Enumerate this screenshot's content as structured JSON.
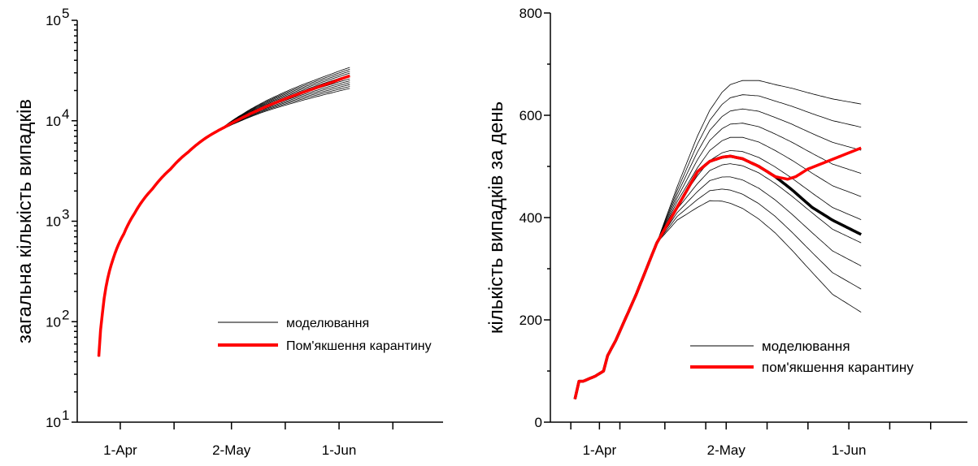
{
  "chart_data": [
    {
      "type": "line",
      "ylabel": "загальна кількість випадків",
      "y_scale": "log",
      "ylim": [
        10,
        100000
      ],
      "y_ticks": [
        {
          "value": 10,
          "label": "10",
          "exp": "1"
        },
        {
          "value": 100,
          "label": "10",
          "exp": "2"
        },
        {
          "value": 1000,
          "label": "10",
          "exp": "3"
        },
        {
          "value": 10000,
          "label": "10",
          "exp": "4"
        },
        {
          "value": 100000,
          "label": "10",
          "exp": "5"
        }
      ],
      "xlim": [
        "2020-03-20",
        "2020-06-30"
      ],
      "x_major_ticks": [
        {
          "date": "2020-04-01",
          "label": "1-Apr"
        },
        {
          "date": "2020-05-02",
          "label": "2-May"
        },
        {
          "date": "2020-06-01",
          "label": "1-Jun"
        }
      ],
      "x_minor_ticks": [
        "2020-04-16",
        "2020-05-17",
        "2020-06-16"
      ],
      "legend": {
        "position": "lower-right",
        "entries": [
          {
            "label": "моделювання",
            "color": "#000000",
            "style": "thin"
          },
          {
            "label": "Пом'якшення карантину",
            "color": "#ff0000",
            "style": "thick"
          }
        ]
      },
      "series": [
        {
          "role": "simulation-band",
          "color": "#000000",
          "x": [
            "2020-03-26",
            "2020-03-27",
            "2020-03-28",
            "2020-03-30",
            "2020-04-02",
            "2020-04-05",
            "2020-04-10",
            "2020-04-15",
            "2020-04-20",
            "2020-04-25",
            "2020-04-30",
            "2020-05-05",
            "2020-05-10",
            "2020-05-15",
            "2020-05-20",
            "2020-05-25",
            "2020-05-30",
            "2020-06-04"
          ],
          "values_low": [
            45,
            120,
            220,
            420,
            750,
            1200,
            2100,
            3300,
            4900,
            6800,
            8400,
            10100,
            11900,
            13600,
            15300,
            17100,
            19000,
            21000
          ],
          "values_high": [
            45,
            120,
            220,
            420,
            750,
            1200,
            2100,
            3300,
            4900,
            6800,
            8800,
            11600,
            14700,
            18000,
            21500,
            25200,
            29300,
            34000
          ],
          "count": 12
        },
        {
          "name": "Пом'якшення карантину",
          "color": "#ff0000",
          "x": [
            "2020-03-26",
            "2020-03-27",
            "2020-03-28",
            "2020-03-30",
            "2020-04-02",
            "2020-04-05",
            "2020-04-10",
            "2020-04-15",
            "2020-04-20",
            "2020-04-25",
            "2020-04-30",
            "2020-05-05",
            "2020-05-10",
            "2020-05-15",
            "2020-05-20",
            "2020-05-25",
            "2020-05-30",
            "2020-06-04"
          ],
          "values": [
            45,
            120,
            220,
            420,
            750,
            1200,
            2100,
            3300,
            4900,
            6800,
            8600,
            10700,
            13000,
            15500,
            18100,
            20900,
            24100,
            28000
          ]
        }
      ]
    },
    {
      "type": "line",
      "ylabel": "кількість випадків за день",
      "ylim": [
        0,
        800
      ],
      "y_ticks": [
        0,
        200,
        400,
        600,
        800
      ],
      "xlim": [
        "2020-03-20",
        "2020-06-30"
      ],
      "x_major_ticks": [
        {
          "date": "2020-04-01",
          "label": "1-Apr"
        },
        {
          "date": "2020-05-02",
          "label": "2-May"
        },
        {
          "date": "2020-06-01",
          "label": "1-Jun"
        }
      ],
      "x_minor_ticks": [
        "2020-03-25",
        "2020-04-06",
        "2020-04-17",
        "2020-04-27",
        "2020-05-12",
        "2020-05-22",
        "2020-06-11",
        "2020-06-21"
      ],
      "legend": {
        "position": "lower-right",
        "entries": [
          {
            "label": "моделювання",
            "color": "#000000",
            "style": "thin"
          },
          {
            "label": "пом'якшення карантину",
            "color": "#ff0000",
            "style": "thick"
          }
        ]
      },
      "series": [
        {
          "role": "simulation-band",
          "color": "#000000",
          "x": [
            "2020-03-26",
            "2020-03-27",
            "2020-03-28",
            "2020-03-31",
            "2020-04-02",
            "2020-04-03",
            "2020-04-05",
            "2020-04-10",
            "2020-04-15",
            "2020-04-20",
            "2020-04-25",
            "2020-04-28",
            "2020-05-01",
            "2020-05-03",
            "2020-05-06",
            "2020-05-10",
            "2020-05-14",
            "2020-05-18",
            "2020-05-23",
            "2020-05-28",
            "2020-06-04"
          ],
          "values_low": [
            45,
            80,
            80,
            90,
            100,
            130,
            160,
            250,
            350,
            395,
            420,
            433,
            432,
            428,
            418,
            397,
            370,
            337,
            293,
            250,
            215
          ],
          "values_high": [
            45,
            80,
            80,
            90,
            100,
            130,
            160,
            250,
            350,
            460,
            560,
            610,
            645,
            660,
            668,
            668,
            660,
            653,
            642,
            632,
            622
          ],
          "count": 10
        },
        {
          "name": "thick-black-baseline",
          "color": "#000000",
          "x": [
            "2020-03-26",
            "2020-03-27",
            "2020-03-28",
            "2020-03-31",
            "2020-04-02",
            "2020-04-03",
            "2020-04-05",
            "2020-04-10",
            "2020-04-15",
            "2020-04-20",
            "2020-04-25",
            "2020-04-28",
            "2020-05-01",
            "2020-05-03",
            "2020-05-06",
            "2020-05-10",
            "2020-05-14",
            "2020-05-18",
            "2020-05-23",
            "2020-05-28",
            "2020-06-04"
          ],
          "values": [
            45,
            80,
            80,
            90,
            100,
            130,
            160,
            250,
            350,
            420,
            490,
            510,
            518,
            520,
            515,
            500,
            480,
            455,
            420,
            395,
            367
          ]
        },
        {
          "name": "пом'якшення карантину",
          "color": "#ff0000",
          "x": [
            "2020-03-26",
            "2020-03-27",
            "2020-03-28",
            "2020-03-31",
            "2020-04-02",
            "2020-04-03",
            "2020-04-05",
            "2020-04-10",
            "2020-04-15",
            "2020-04-20",
            "2020-04-25",
            "2020-04-28",
            "2020-05-01",
            "2020-05-03",
            "2020-05-06",
            "2020-05-10",
            "2020-05-14",
            "2020-05-17",
            "2020-05-19",
            "2020-05-22",
            "2020-06-04"
          ],
          "values": [
            45,
            80,
            80,
            90,
            100,
            130,
            160,
            250,
            350,
            420,
            490,
            510,
            518,
            520,
            515,
            500,
            480,
            475,
            480,
            495,
            536
          ]
        }
      ]
    }
  ]
}
